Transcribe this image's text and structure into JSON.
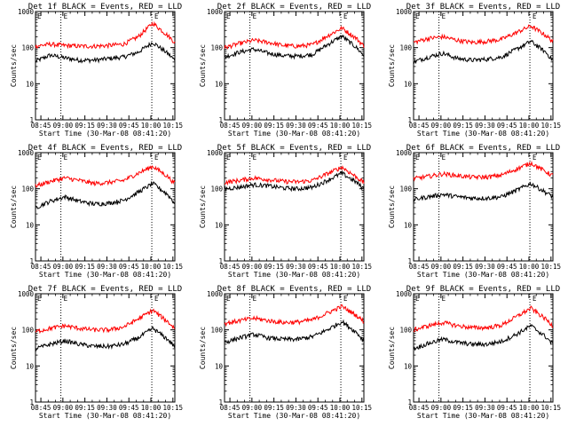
{
  "figure": {
    "start_time_label": "Start Time (30-Mar-08 08:41:20)",
    "ylabel": "Counts/sec",
    "marker_label": "E",
    "colors": {
      "events": "#000000",
      "lld": "#ff0000",
      "axes": "#000000"
    }
  },
  "chart_data": [
    {
      "type": "line",
      "title": "Det 1f BLACK = Events, RED = LLD",
      "xlabel": "Start Time (30-Mar-08 08:41:20)",
      "ylabel": "Counts/sec",
      "x_ticks": [
        "08:45",
        "09:00",
        "09:15",
        "09:30",
        "09:45",
        "10:00",
        "10:15"
      ],
      "y_ticks": [
        "1",
        "10",
        "100",
        "1000"
      ],
      "yscale": "log",
      "ylim": [
        1,
        1000
      ],
      "xlim_minutes": [
        0,
        95
      ],
      "markers_minutes": [
        17.3,
        79.3
      ],
      "series": [
        {
          "name": "Events",
          "color": "#000000",
          "x_minutes": [
            0,
            10,
            20,
            30,
            40,
            50,
            60,
            70,
            80,
            90,
            95
          ],
          "values": [
            42,
            62,
            52,
            45,
            45,
            50,
            55,
            75,
            140,
            70,
            45
          ]
        },
        {
          "name": "LLD",
          "color": "#ff0000",
          "x_minutes": [
            0,
            10,
            20,
            30,
            40,
            50,
            60,
            70,
            80,
            90,
            95
          ],
          "values": [
            110,
            125,
            115,
            110,
            110,
            115,
            125,
            200,
            480,
            220,
            140
          ]
        }
      ]
    },
    {
      "type": "line",
      "title": "Det 2f BLACK = Events, RED = LLD",
      "xlabel": "Start Time (30-Mar-08 08:41:20)",
      "ylabel": "Counts/sec",
      "x_ticks": [
        "08:45",
        "09:00",
        "09:15",
        "09:30",
        "09:45",
        "10:00",
        "10:15"
      ],
      "y_ticks": [
        "1",
        "10",
        "100",
        "1000"
      ],
      "yscale": "log",
      "ylim": [
        1,
        1000
      ],
      "xlim_minutes": [
        0,
        95
      ],
      "markers_minutes": [
        17.3,
        79.3
      ],
      "series": [
        {
          "name": "Events",
          "color": "#000000",
          "x_minutes": [
            0,
            10,
            20,
            30,
            40,
            50,
            60,
            70,
            80,
            90,
            95
          ],
          "values": [
            55,
            75,
            90,
            70,
            60,
            58,
            65,
            120,
            210,
            100,
            60
          ]
        },
        {
          "name": "LLD",
          "color": "#ff0000",
          "x_minutes": [
            0,
            10,
            20,
            30,
            40,
            50,
            60,
            70,
            80,
            90,
            95
          ],
          "values": [
            100,
            130,
            160,
            140,
            115,
            110,
            120,
            210,
            350,
            180,
            110
          ]
        }
      ]
    },
    {
      "type": "line",
      "title": "Det 3f BLACK = Events, RED = LLD",
      "xlabel": "Start Time (30-Mar-08 08:41:20)",
      "ylabel": "Counts/sec",
      "x_ticks": [
        "08:45",
        "09:00",
        "09:15",
        "09:30",
        "09:45",
        "10:00",
        "10:15"
      ],
      "y_ticks": [
        "1",
        "10",
        "100",
        "1000"
      ],
      "yscale": "log",
      "ylim": [
        1,
        1000
      ],
      "xlim_minutes": [
        0,
        95
      ],
      "markers_minutes": [
        17.3,
        79.3
      ],
      "series": [
        {
          "name": "Events",
          "color": "#000000",
          "x_minutes": [
            0,
            10,
            20,
            30,
            40,
            50,
            60,
            70,
            80,
            90,
            95
          ],
          "values": [
            40,
            55,
            70,
            50,
            45,
            48,
            55,
            90,
            150,
            75,
            45
          ]
        },
        {
          "name": "LLD",
          "color": "#ff0000",
          "x_minutes": [
            0,
            10,
            20,
            30,
            40,
            50,
            60,
            70,
            80,
            90,
            95
          ],
          "values": [
            140,
            180,
            200,
            160,
            140,
            150,
            170,
            260,
            400,
            220,
            150
          ]
        }
      ]
    },
    {
      "type": "line",
      "title": "Det 4f BLACK = Events, RED = LLD",
      "xlabel": "Start Time (30-Mar-08 08:41:20)",
      "ylabel": "Counts/sec",
      "x_ticks": [
        "08:45",
        "09:00",
        "09:15",
        "09:30",
        "09:45",
        "10:00",
        "10:15"
      ],
      "y_ticks": [
        "1",
        "10",
        "100",
        "1000"
      ],
      "yscale": "log",
      "ylim": [
        1,
        1000
      ],
      "xlim_minutes": [
        0,
        95
      ],
      "markers_minutes": [
        17.3,
        79.3
      ],
      "series": [
        {
          "name": "Events",
          "color": "#000000",
          "x_minutes": [
            0,
            10,
            20,
            30,
            40,
            50,
            60,
            70,
            80,
            90,
            95
          ],
          "values": [
            30,
            45,
            60,
            45,
            38,
            40,
            48,
            80,
            140,
            70,
            40
          ]
        },
        {
          "name": "LLD",
          "color": "#ff0000",
          "x_minutes": [
            0,
            10,
            20,
            30,
            40,
            50,
            60,
            70,
            80,
            90,
            95
          ],
          "values": [
            120,
            160,
            200,
            170,
            140,
            150,
            170,
            270,
            420,
            220,
            140
          ]
        }
      ]
    },
    {
      "type": "line",
      "title": "Det 5f BLACK = Events, RED = LLD",
      "xlabel": "Start Time (30-Mar-08 08:41:20)",
      "ylabel": "Counts/sec",
      "x_ticks": [
        "08:45",
        "09:00",
        "09:15",
        "09:30",
        "09:45",
        "10:00",
        "10:15"
      ],
      "y_ticks": [
        "1",
        "10",
        "100",
        "1000"
      ],
      "yscale": "log",
      "ylim": [
        1,
        1000
      ],
      "xlim_minutes": [
        0,
        95
      ],
      "markers_minutes": [
        17.3,
        79.3
      ],
      "series": [
        {
          "name": "Events",
          "color": "#000000",
          "x_minutes": [
            0,
            10,
            20,
            30,
            40,
            50,
            60,
            70,
            80,
            90,
            95
          ],
          "values": [
            100,
            110,
            130,
            120,
            105,
            100,
            110,
            170,
            270,
            150,
            100
          ]
        },
        {
          "name": "LLD",
          "color": "#ff0000",
          "x_minutes": [
            0,
            10,
            20,
            30,
            40,
            50,
            60,
            70,
            80,
            90,
            95
          ],
          "values": [
            150,
            170,
            200,
            180,
            160,
            155,
            170,
            260,
            400,
            210,
            150
          ]
        }
      ]
    },
    {
      "type": "line",
      "title": "Det 6f BLACK = Events, RED = LLD",
      "xlabel": "Start Time (30-Mar-08 08:41:20)",
      "ylabel": "Counts/sec",
      "x_ticks": [
        "08:45",
        "09:00",
        "09:15",
        "09:30",
        "09:45",
        "10:00",
        "10:15"
      ],
      "y_ticks": [
        "1",
        "10",
        "100",
        "1000"
      ],
      "yscale": "log",
      "ylim": [
        1,
        1000
      ],
      "xlim_minutes": [
        0,
        95
      ],
      "markers_minutes": [
        17.3,
        79.3
      ],
      "series": [
        {
          "name": "Events",
          "color": "#000000",
          "x_minutes": [
            0,
            10,
            20,
            30,
            40,
            50,
            60,
            70,
            80,
            90,
            95
          ],
          "values": [
            50,
            60,
            70,
            60,
            55,
            55,
            60,
            90,
            140,
            80,
            60
          ]
        },
        {
          "name": "LLD",
          "color": "#ff0000",
          "x_minutes": [
            0,
            10,
            20,
            30,
            40,
            50,
            60,
            70,
            80,
            90,
            95
          ],
          "values": [
            190,
            220,
            260,
            230,
            210,
            210,
            240,
            350,
            520,
            300,
            230
          ]
        }
      ]
    },
    {
      "type": "line",
      "title": "Det 7f BLACK = Events, RED = LLD",
      "xlabel": "Start Time (30-Mar-08 08:41:20)",
      "ylabel": "Counts/sec",
      "x_ticks": [
        "08:45",
        "09:00",
        "09:15",
        "09:30",
        "09:45",
        "10:00",
        "10:15"
      ],
      "y_ticks": [
        "1",
        "10",
        "100",
        "1000"
      ],
      "yscale": "log",
      "ylim": [
        1,
        1000
      ],
      "xlim_minutes": [
        0,
        95
      ],
      "markers_minutes": [
        17.3,
        79.3
      ],
      "series": [
        {
          "name": "Events",
          "color": "#000000",
          "x_minutes": [
            0,
            10,
            20,
            30,
            40,
            50,
            60,
            70,
            80,
            90,
            95
          ],
          "values": [
            30,
            40,
            50,
            40,
            35,
            35,
            40,
            60,
            110,
            55,
            35
          ]
        },
        {
          "name": "LLD",
          "color": "#ff0000",
          "x_minutes": [
            0,
            10,
            20,
            30,
            40,
            50,
            60,
            70,
            80,
            90,
            95
          ],
          "values": [
            90,
            110,
            130,
            110,
            100,
            100,
            120,
            200,
            350,
            170,
            110
          ]
        }
      ]
    },
    {
      "type": "line",
      "title": "Det 8f BLACK = Events, RED = LLD",
      "xlabel": "Start Time (30-Mar-08 08:41:20)",
      "ylabel": "Counts/sec",
      "x_ticks": [
        "08:45",
        "09:00",
        "09:15",
        "09:30",
        "09:45",
        "10:00",
        "10:15"
      ],
      "y_ticks": [
        "1",
        "10",
        "100",
        "1000"
      ],
      "yscale": "log",
      "ylim": [
        1,
        1000
      ],
      "xlim_minutes": [
        0,
        95
      ],
      "markers_minutes": [
        17.3,
        79.3
      ],
      "series": [
        {
          "name": "Events",
          "color": "#000000",
          "x_minutes": [
            0,
            10,
            20,
            30,
            40,
            50,
            60,
            70,
            80,
            90,
            95
          ],
          "values": [
            45,
            60,
            75,
            60,
            55,
            55,
            65,
            100,
            170,
            85,
            50
          ]
        },
        {
          "name": "LLD",
          "color": "#ff0000",
          "x_minutes": [
            0,
            10,
            20,
            30,
            40,
            50,
            60,
            70,
            80,
            90,
            95
          ],
          "values": [
            150,
            180,
            210,
            180,
            160,
            165,
            190,
            290,
            450,
            250,
            170
          ]
        }
      ]
    },
    {
      "type": "line",
      "title": "Det 9f BLACK = Events, RED = LLD",
      "xlabel": "Start Time (30-Mar-08 08:41:20)",
      "ylabel": "Counts/sec",
      "x_ticks": [
        "08:45",
        "09:00",
        "09:15",
        "09:30",
        "09:45",
        "10:00",
        "10:15"
      ],
      "y_ticks": [
        "1",
        "10",
        "100",
        "1000"
      ],
      "yscale": "log",
      "ylim": [
        1,
        1000
      ],
      "xlim_minutes": [
        0,
        95
      ],
      "markers_minutes": [
        17.3,
        79.3
      ],
      "series": [
        {
          "name": "Events",
          "color": "#000000",
          "x_minutes": [
            0,
            10,
            20,
            30,
            40,
            50,
            60,
            70,
            80,
            90,
            95
          ],
          "values": [
            30,
            42,
            55,
            45,
            40,
            40,
            48,
            75,
            130,
            65,
            40
          ]
        },
        {
          "name": "LLD",
          "color": "#ff0000",
          "x_minutes": [
            0,
            10,
            20,
            30,
            40,
            50,
            60,
            70,
            80,
            90,
            95
          ],
          "values": [
            100,
            130,
            160,
            130,
            115,
            115,
            135,
            230,
            400,
            200,
            130
          ]
        }
      ]
    }
  ]
}
